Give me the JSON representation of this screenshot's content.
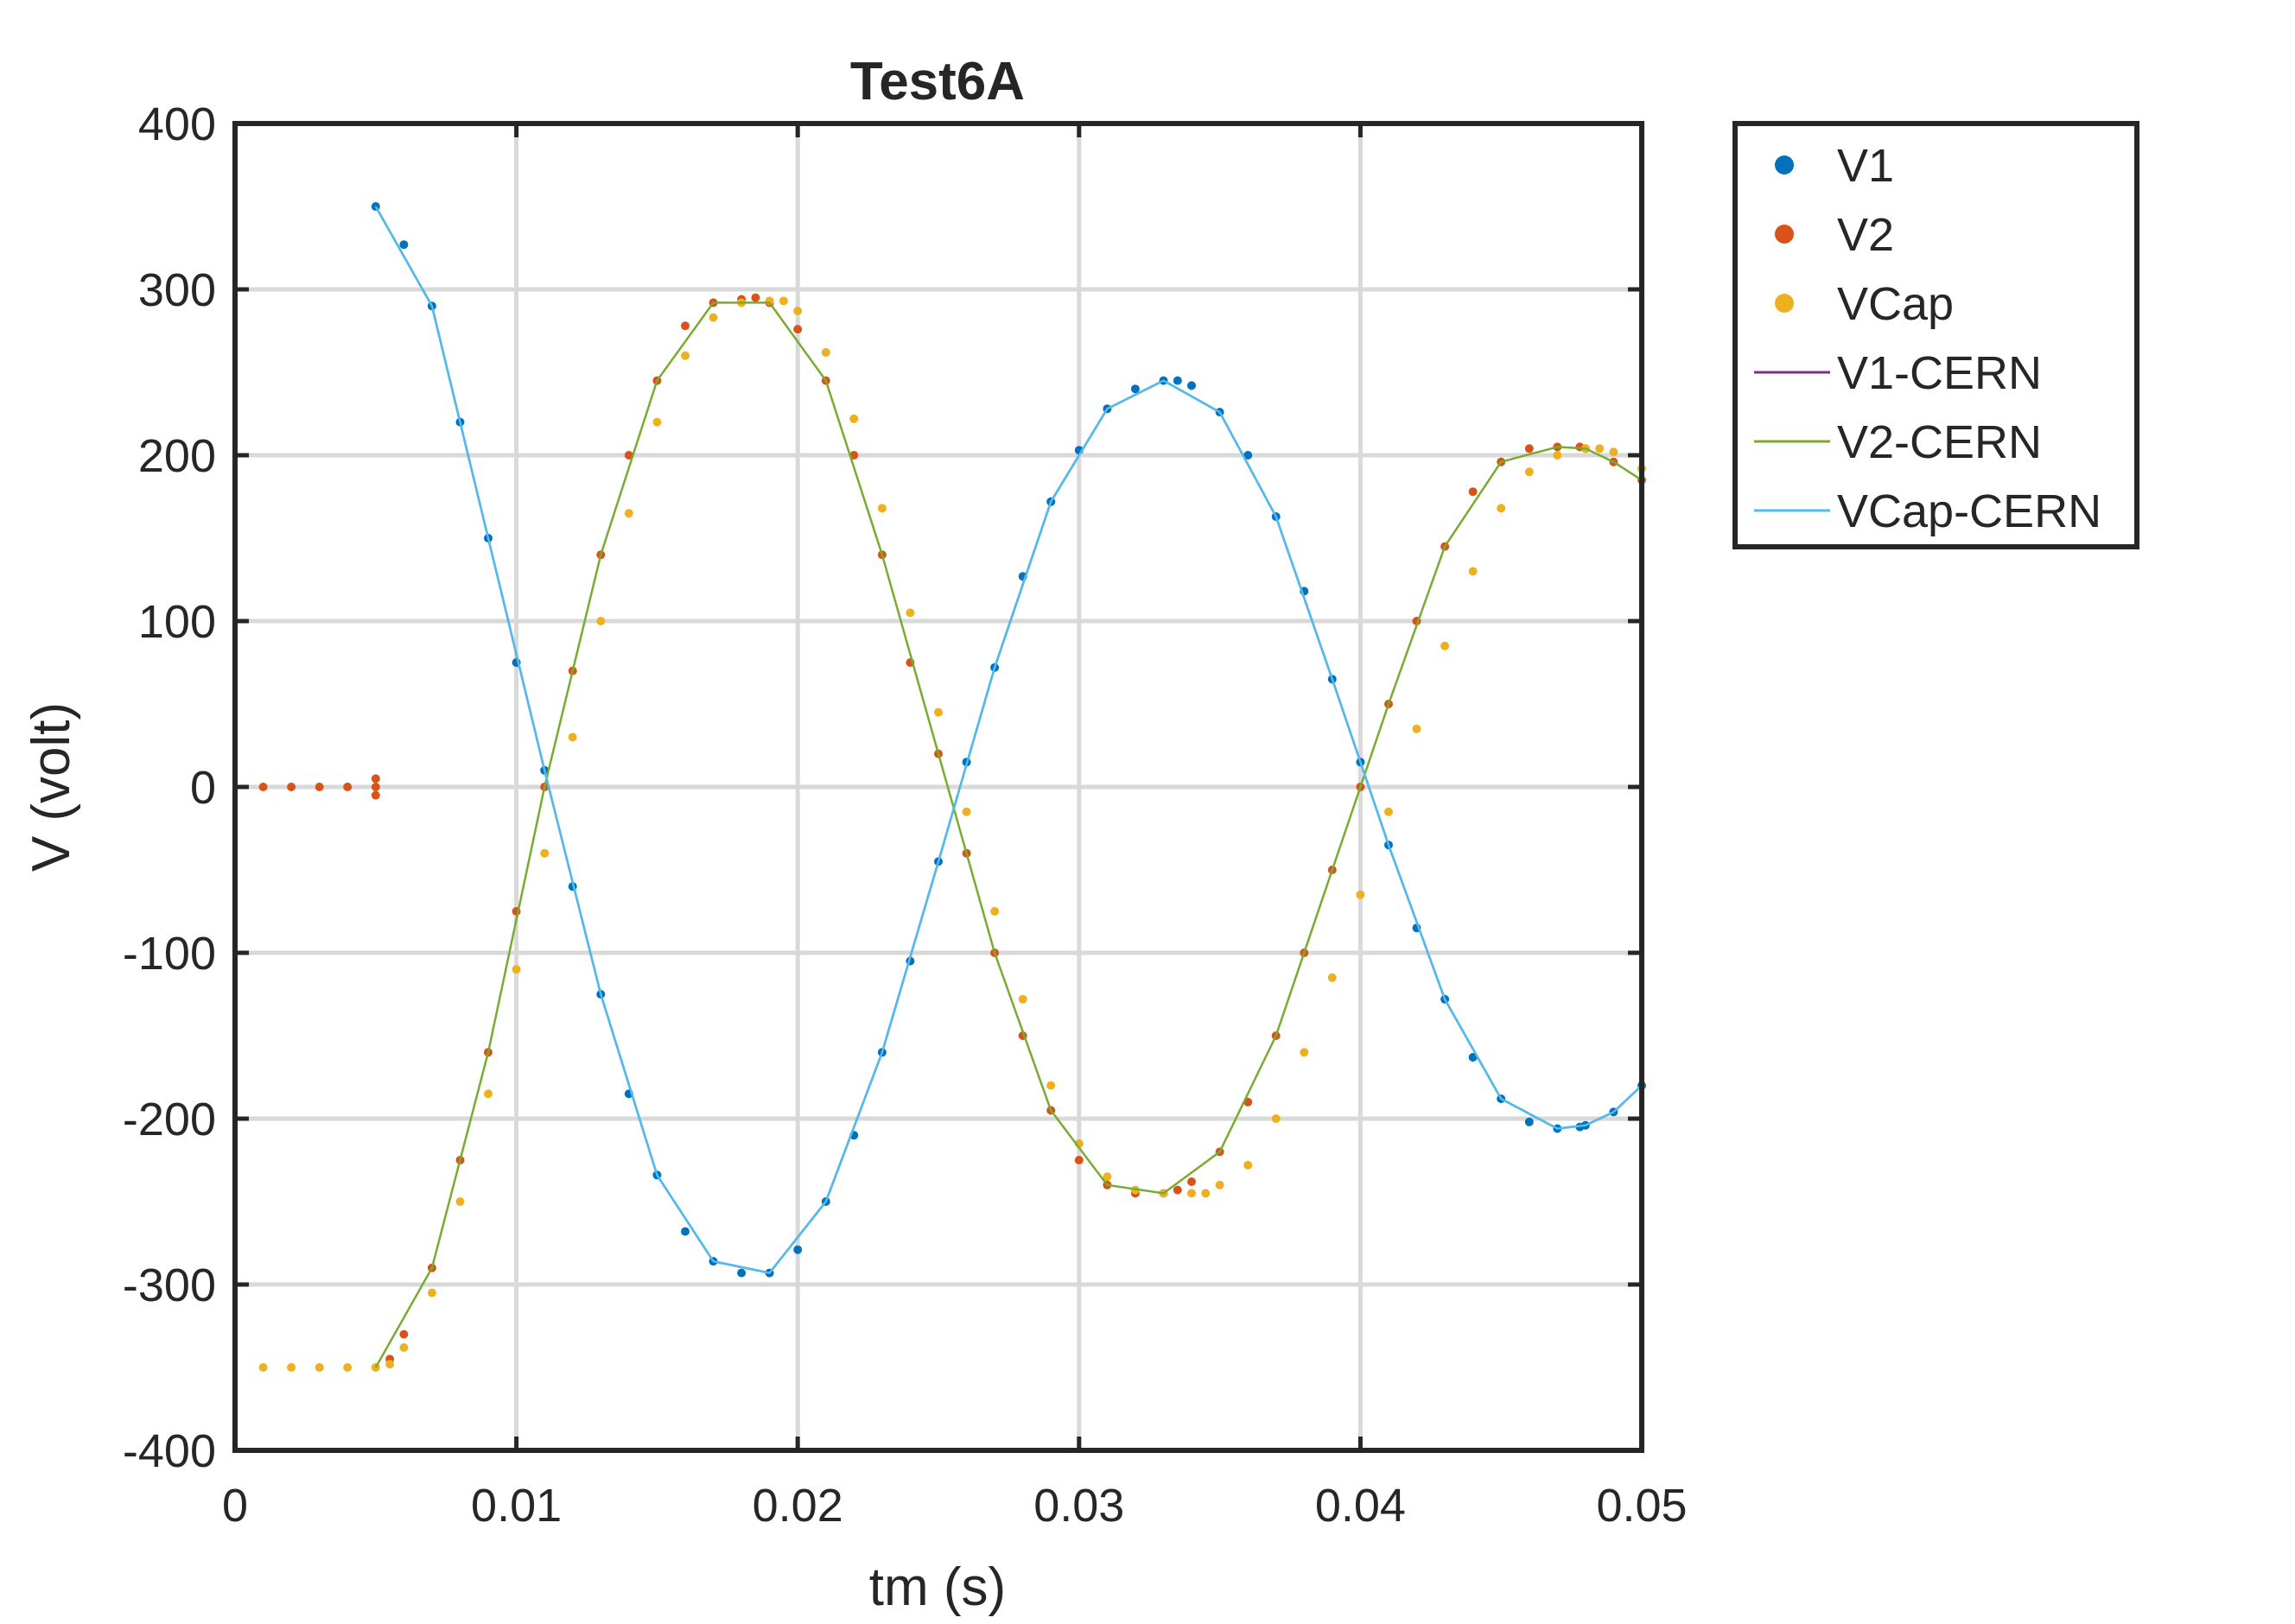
{
  "chart_data": {
    "type": "scatter",
    "title": "Test6A",
    "xlabel": "tm (s)",
    "ylabel": "V (volt)",
    "xlim": [
      0,
      0.05
    ],
    "ylim": [
      -400,
      400
    ],
    "x_ticks": [
      0,
      0.01,
      0.02,
      0.03,
      0.04,
      0.05
    ],
    "x_tick_labels": [
      "0",
      "0.01",
      "0.02",
      "0.03",
      "0.04",
      "0.05"
    ],
    "y_ticks": [
      400,
      300,
      200,
      100,
      0,
      -100,
      -200,
      -300,
      -400
    ],
    "y_tick_labels": [
      "400",
      "300",
      "200",
      "100",
      "0",
      "-100",
      "-200",
      "-300",
      "-400"
    ],
    "grid": true,
    "legend_position": "outside-top-right",
    "series": [
      {
        "name": "V1",
        "style": "markers",
        "color": "#0072BD",
        "x": [
          0.005,
          0.006,
          0.007,
          0.008,
          0.009,
          0.01,
          0.011,
          0.012,
          0.013,
          0.014,
          0.015,
          0.016,
          0.017,
          0.018,
          0.019,
          0.02,
          0.021,
          0.022,
          0.023,
          0.024,
          0.025,
          0.026,
          0.027,
          0.028,
          0.029,
          0.03,
          0.031,
          0.032,
          0.033,
          0.0335,
          0.034,
          0.035,
          0.036,
          0.037,
          0.038,
          0.039,
          0.04,
          0.041,
          0.042,
          0.043,
          0.044,
          0.045,
          0.046,
          0.047,
          0.0478,
          0.048,
          0.049,
          0.05
        ],
        "y": [
          350,
          327,
          290,
          220,
          150,
          75,
          10,
          -60,
          -125,
          -185,
          -234,
          -268,
          -286,
          -293,
          -293,
          -279,
          -250,
          -210,
          -160,
          -105,
          -45,
          15,
          72,
          127,
          172,
          203,
          228,
          240,
          245,
          245,
          242,
          226,
          200,
          163,
          118,
          65,
          15,
          -35,
          -85,
          -128,
          -163,
          -188,
          -202,
          -206,
          -205,
          -204,
          -196,
          -180
        ]
      },
      {
        "name": "V2",
        "style": "markers",
        "color": "#D95319",
        "x": [
          0.001,
          0.002,
          0.003,
          0.004,
          0.005,
          0.005,
          0.005,
          0.0055,
          0.006,
          0.007,
          0.008,
          0.009,
          0.01,
          0.011,
          0.012,
          0.013,
          0.014,
          0.015,
          0.016,
          0.017,
          0.018,
          0.0185,
          0.019,
          0.02,
          0.021,
          0.022,
          0.023,
          0.024,
          0.025,
          0.026,
          0.027,
          0.028,
          0.029,
          0.03,
          0.031,
          0.032,
          0.033,
          0.0335,
          0.034,
          0.035,
          0.036,
          0.037,
          0.038,
          0.039,
          0.04,
          0.041,
          0.042,
          0.043,
          0.044,
          0.045,
          0.046,
          0.047,
          0.0478,
          0.048,
          0.049,
          0.05
        ],
        "y": [
          0,
          0,
          0,
          0,
          0,
          -5,
          5,
          -345,
          -330,
          -290,
          -225,
          -160,
          -75,
          0,
          70,
          140,
          200,
          245,
          278,
          292,
          294,
          295,
          292,
          276,
          245,
          200,
          140,
          75,
          20,
          -40,
          -100,
          -150,
          -195,
          -225,
          -240,
          -245,
          -245,
          -243,
          -238,
          -220,
          -190,
          -150,
          -100,
          -50,
          0,
          50,
          100,
          145,
          178,
          196,
          204,
          205,
          205,
          204,
          196,
          185
        ]
      },
      {
        "name": "VCap",
        "style": "markers",
        "color": "#EDB120",
        "x": [
          0.001,
          0.002,
          0.003,
          0.004,
          0.005,
          0.0055,
          0.006,
          0.007,
          0.008,
          0.009,
          0.01,
          0.011,
          0.012,
          0.013,
          0.014,
          0.015,
          0.016,
          0.017,
          0.018,
          0.019,
          0.0195,
          0.02,
          0.021,
          0.022,
          0.023,
          0.024,
          0.025,
          0.026,
          0.027,
          0.028,
          0.029,
          0.03,
          0.031,
          0.032,
          0.033,
          0.034,
          0.0345,
          0.035,
          0.036,
          0.037,
          0.038,
          0.039,
          0.04,
          0.041,
          0.042,
          0.043,
          0.044,
          0.045,
          0.046,
          0.047,
          0.048,
          0.0485,
          0.049,
          0.05
        ],
        "y": [
          -350,
          -350,
          -350,
          -350,
          -350,
          -348,
          -338,
          -305,
          -250,
          -185,
          -110,
          -40,
          30,
          100,
          165,
          220,
          260,
          283,
          292,
          293,
          293,
          287,
          262,
          222,
          168,
          105,
          45,
          -15,
          -75,
          -128,
          -180,
          -215,
          -235,
          -243,
          -245,
          -245,
          -245,
          -240,
          -228,
          -200,
          -160,
          -115,
          -65,
          -15,
          35,
          85,
          130,
          168,
          190,
          200,
          204,
          204,
          202,
          192
        ]
      },
      {
        "name": "V1-CERN",
        "style": "line",
        "color": "#7E2F8E",
        "x": [
          0.005,
          0.007,
          0.009,
          0.011,
          0.013,
          0.015,
          0.017,
          0.019,
          0.021,
          0.023,
          0.025,
          0.027,
          0.029,
          0.031,
          0.033,
          0.035,
          0.037,
          0.039,
          0.041,
          0.043,
          0.045,
          0.047,
          0.048,
          0.049,
          0.05
        ],
        "y": [
          350,
          290,
          150,
          10,
          -125,
          -234,
          -286,
          -293,
          -250,
          -160,
          -45,
          72,
          172,
          228,
          245,
          226,
          163,
          65,
          -35,
          -128,
          -188,
          -206,
          -204,
          -196,
          -180
        ]
      },
      {
        "name": "V2-CERN",
        "style": "line",
        "color": "#77AC30",
        "x": [
          0.005,
          0.007,
          0.009,
          0.011,
          0.013,
          0.015,
          0.017,
          0.019,
          0.021,
          0.023,
          0.025,
          0.027,
          0.029,
          0.031,
          0.033,
          0.035,
          0.037,
          0.039,
          0.041,
          0.043,
          0.045,
          0.047,
          0.048,
          0.049,
          0.05
        ],
        "y": [
          -350,
          -290,
          -160,
          0,
          140,
          245,
          292,
          292,
          245,
          140,
          20,
          -100,
          -195,
          -240,
          -245,
          -220,
          -150,
          -50,
          50,
          145,
          196,
          205,
          204,
          196,
          185
        ]
      },
      {
        "name": "VCap-CERN",
        "style": "line",
        "color": "#4DBEEE",
        "x": [
          0.005,
          0.007,
          0.009,
          0.011,
          0.013,
          0.015,
          0.017,
          0.019,
          0.021,
          0.023,
          0.025,
          0.027,
          0.029,
          0.031,
          0.033,
          0.035,
          0.037,
          0.039,
          0.041,
          0.043,
          0.045,
          0.047,
          0.048,
          0.049,
          0.05
        ],
        "y": [
          350,
          290,
          150,
          10,
          -125,
          -234,
          -286,
          -293,
          -250,
          -160,
          -45,
          72,
          172,
          228,
          245,
          226,
          163,
          65,
          -35,
          -128,
          -188,
          -206,
          -204,
          -196,
          -180
        ]
      }
    ]
  }
}
